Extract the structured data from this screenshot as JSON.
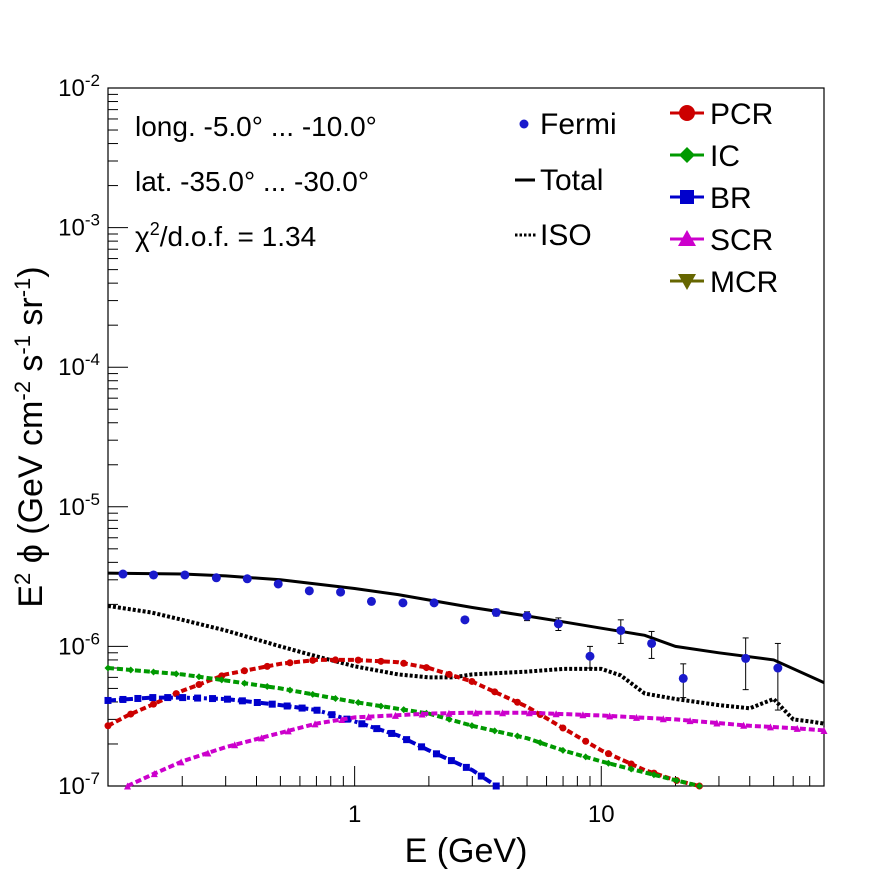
{
  "chart_data": {
    "type": "line",
    "xscale": "log",
    "yscale": "log",
    "xlim": [
      0.1,
      80
    ],
    "ylim": [
      1e-07,
      0.01
    ],
    "xlabel": "E (GeV)",
    "ylabel": "E² ϕ (GeV cm⁻² s⁻¹ sr⁻¹)",
    "ylabel_parts": {
      "e": "E",
      "sup2": "2",
      "phi": " ϕ (GeV cm",
      "m2": "-2",
      "s": " s",
      "m1a": "-1",
      "sr": " sr",
      "m1b": "-1",
      "close": ")"
    },
    "x_ticks": [
      {
        "value": 1,
        "label": "1"
      },
      {
        "value": 10,
        "label": "10"
      }
    ],
    "y_ticks": [
      {
        "exp": -7,
        "base": "10",
        "pow": "-7"
      },
      {
        "exp": -6,
        "base": "10",
        "pow": "-6"
      },
      {
        "exp": -5,
        "base": "10",
        "pow": "-5"
      },
      {
        "exp": -4,
        "base": "10",
        "pow": "-4"
      },
      {
        "exp": -3,
        "base": "10",
        "pow": "-3"
      },
      {
        "exp": -2,
        "base": "10",
        "pow": "-2"
      }
    ],
    "annotations": {
      "longitude": "long. -5.0° ... -10.0°",
      "latitude": "lat. -35.0° ... -30.0°",
      "chi2_symbol": "χ",
      "chi2_sup": "2",
      "chi2_rest": "/d.o.f. = 1.34"
    },
    "legend_left": [
      {
        "key": "fermi",
        "label": "Fermi"
      },
      {
        "key": "total",
        "label": "Total"
      },
      {
        "key": "iso",
        "label": "ISO"
      }
    ],
    "legend_right": [
      {
        "key": "pcr",
        "label": "PCR"
      },
      {
        "key": "ic",
        "label": "IC"
      },
      {
        "key": "br",
        "label": "BR"
      },
      {
        "key": "scr",
        "label": "SCR"
      },
      {
        "key": "mcr",
        "label": "MCR"
      }
    ],
    "fermi_points": [
      {
        "x": 0.115,
        "y": 3.3e-06,
        "err": 0
      },
      {
        "x": 0.153,
        "y": 3.25e-06,
        "err": 0
      },
      {
        "x": 0.205,
        "y": 3.25e-06,
        "err": 0
      },
      {
        "x": 0.275,
        "y": 3.1e-06,
        "err": 0
      },
      {
        "x": 0.367,
        "y": 3.05e-06,
        "err": 0
      },
      {
        "x": 0.49,
        "y": 2.8e-06,
        "err": 0
      },
      {
        "x": 0.655,
        "y": 2.5e-06,
        "err": 0
      },
      {
        "x": 0.877,
        "y": 2.45e-06,
        "err": 0
      },
      {
        "x": 1.17,
        "y": 2.1e-06,
        "err": 0
      },
      {
        "x": 1.57,
        "y": 2.05e-06,
        "err": 0
      },
      {
        "x": 2.1,
        "y": 2.05e-06,
        "err": 0
      },
      {
        "x": 2.8,
        "y": 1.55e-06,
        "err": 0
      },
      {
        "x": 3.75,
        "y": 1.75e-06,
        "err": 1e-07
      },
      {
        "x": 5.0,
        "y": 1.65e-06,
        "err": 1.2e-07
      },
      {
        "x": 6.7,
        "y": 1.45e-06,
        "err": 1.5e-07
      },
      {
        "x": 9.0,
        "y": 8.5e-07,
        "err": 1.5e-07
      },
      {
        "x": 12.0,
        "y": 1.3e-06,
        "err": 2.5e-07
      },
      {
        "x": 16.0,
        "y": 1.05e-06,
        "err": 2.3e-07
      },
      {
        "x": 21.5,
        "y": 5.9e-07,
        "err": 1.6e-07
      },
      {
        "x": 38.5,
        "y": 8.2e-07,
        "err": 3.3e-07
      },
      {
        "x": 52.0,
        "y": 7e-07,
        "err": 3.5e-07
      }
    ],
    "series": [
      {
        "name": "Total",
        "style": "solid",
        "color": "#000000",
        "x": [
          0.1,
          0.2,
          0.3,
          0.5,
          0.7,
          1.0,
          1.5,
          2.0,
          3.0,
          5.0,
          7.0,
          10.0,
          15.0,
          20.0,
          30.0,
          50.0,
          80.0
        ],
        "y": [
          3.35e-06,
          3.3e-06,
          3.2e-06,
          3e-06,
          2.8e-06,
          2.6e-06,
          2.35e-06,
          2.15e-06,
          1.9e-06,
          1.65e-06,
          1.5e-06,
          1.35e-06,
          1.2e-06,
          1e-06,
          9e-07,
          8e-07,
          5.5e-07
        ]
      },
      {
        "name": "ISO",
        "style": "dotted",
        "color": "#000000",
        "x": [
          0.1,
          0.15,
          0.2,
          0.3,
          0.5,
          0.7,
          1.0,
          1.5,
          2.0,
          2.5,
          3.0,
          5.0,
          7.0,
          10.0,
          12.0,
          15.0,
          20.0,
          30.0,
          40.0,
          50.0,
          60.0,
          70.0,
          80.0
        ],
        "y": [
          1.95e-06,
          1.75e-06,
          1.55e-06,
          1.3e-06,
          1e-06,
          8.5e-07,
          7.2e-07,
          6.3e-07,
          6e-07,
          6e-07,
          6.3e-07,
          6.6e-07,
          6.9e-07,
          6.9e-07,
          6.2e-07,
          4.6e-07,
          4.2e-07,
          3.8e-07,
          3.6e-07,
          4.2e-07,
          3e-07,
          2.9e-07,
          2.8e-07
        ]
      },
      {
        "name": "PCR",
        "style": "dashed",
        "color": "#cc0000",
        "marker": "circle",
        "x": [
          0.1,
          0.12,
          0.15,
          0.2,
          0.3,
          0.5,
          0.7,
          1.0,
          1.5,
          2.0,
          3.0,
          5.0,
          7.0,
          10.0,
          15.0,
          20.0,
          25.0
        ],
        "y": [
          2.7e-07,
          3.2e-07,
          3.8e-07,
          4.8e-07,
          6.3e-07,
          7.5e-07,
          8e-07,
          8e-07,
          7.7e-07,
          7e-07,
          5.6e-07,
          3.7e-07,
          2.6e-07,
          1.8e-07,
          1.3e-07,
          1.1e-07,
          1e-07
        ]
      },
      {
        "name": "IC",
        "style": "dashed",
        "color": "#009900",
        "marker": "diamond",
        "x": [
          0.1,
          0.2,
          0.3,
          0.5,
          1.0,
          2.0,
          3.0,
          5.0,
          7.0,
          10.0,
          15.0,
          20.0,
          25.0
        ],
        "y": [
          7e-07,
          6.3e-07,
          5.7e-07,
          5e-07,
          4e-07,
          3.3e-07,
          2.7e-07,
          2.2e-07,
          1.8e-07,
          1.5e-07,
          1.25e-07,
          1.1e-07,
          1e-07
        ]
      },
      {
        "name": "BR",
        "style": "dashdot",
        "color": "#0000cc",
        "marker": "square",
        "x": [
          0.1,
          0.15,
          0.2,
          0.3,
          0.5,
          0.7,
          1.0,
          1.5,
          2.0,
          3.0,
          3.75
        ],
        "y": [
          4.1e-07,
          4.3e-07,
          4.3e-07,
          4.2e-07,
          3.8e-07,
          3.5e-07,
          2.9e-07,
          2.3e-07,
          1.8e-07,
          1.3e-07,
          1e-07
        ]
      },
      {
        "name": "SCR",
        "style": "dashed",
        "color": "#cc00cc",
        "marker": "triangle",
        "x": [
          0.12,
          0.15,
          0.2,
          0.3,
          0.5,
          0.7,
          1.0,
          2.0,
          3.0,
          5.0,
          10.0,
          20.0,
          40.0,
          60.0,
          80.0
        ],
        "y": [
          1e-07,
          1.2e-07,
          1.5e-07,
          1.9e-07,
          2.4e-07,
          2.8e-07,
          3.1e-07,
          3.3e-07,
          3.35e-07,
          3.35e-07,
          3.2e-07,
          3e-07,
          2.7e-07,
          2.6e-07,
          2.5e-07
        ]
      }
    ]
  }
}
